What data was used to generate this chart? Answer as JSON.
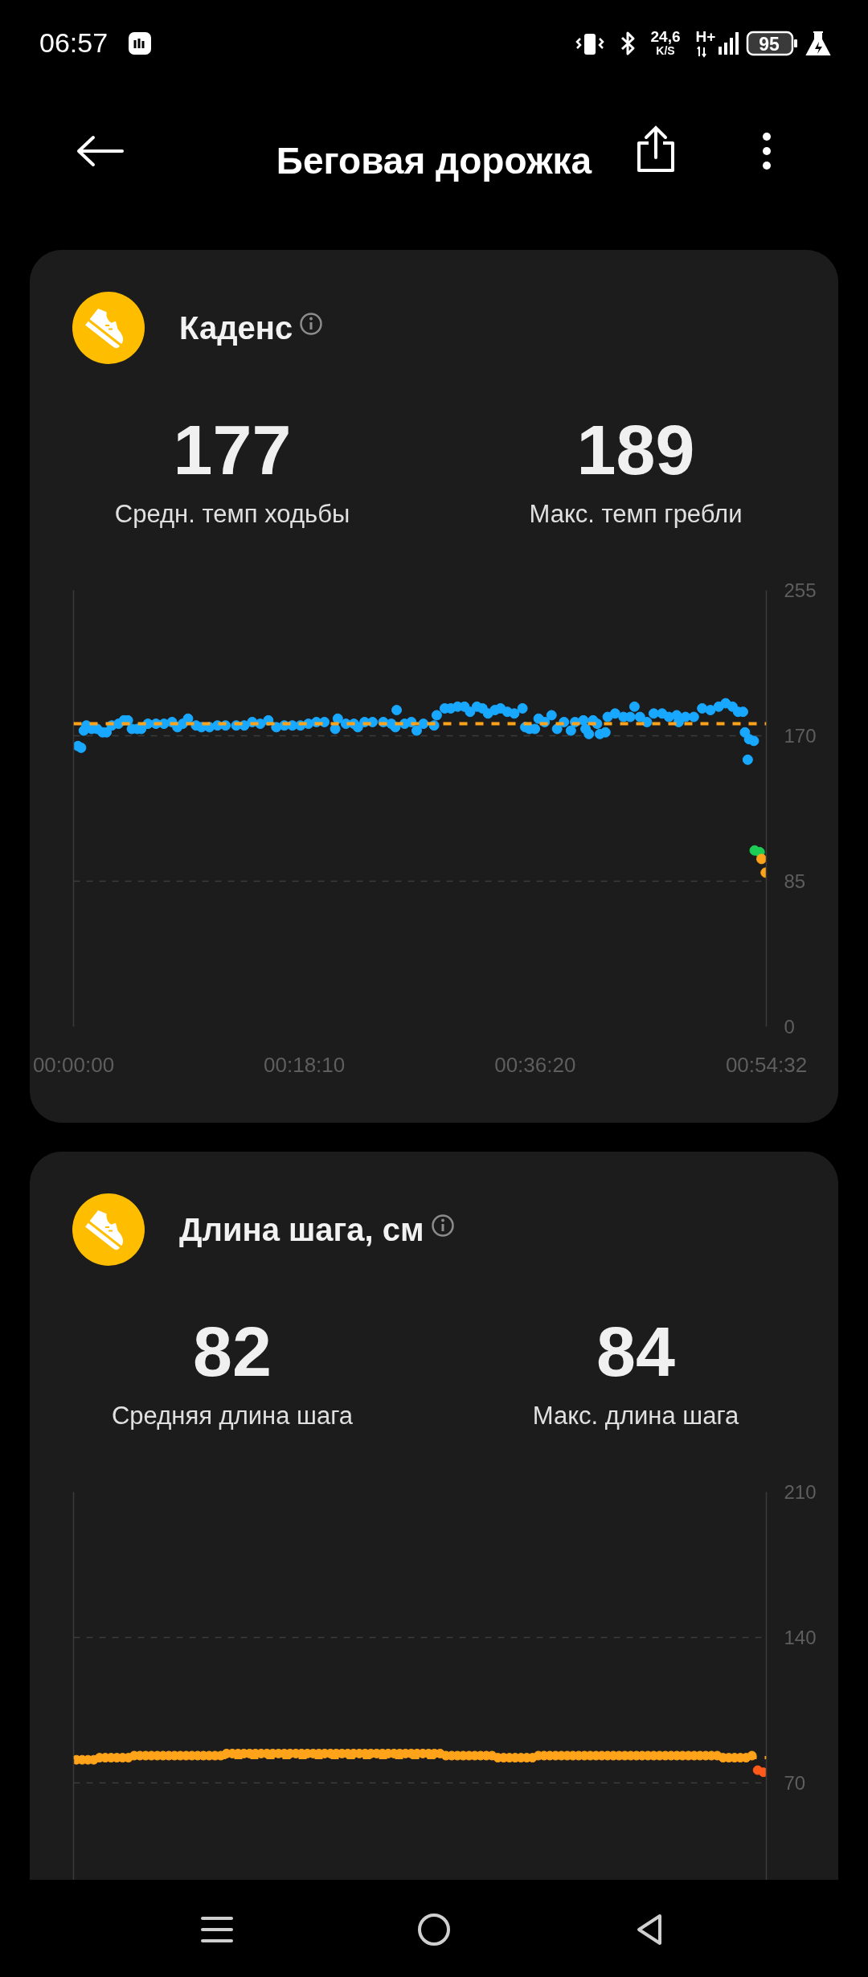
{
  "chart_data": [
    {
      "type": "other",
      "title": "Беговая дорожка",
      "annotations": [
        "06:57",
        "24,6",
        "K/S",
        "H+",
        "95"
      ]
    },
    {
      "type": "scatter",
      "title": "Каденс",
      "annotations": [
        "177",
        "Средн. темп ходьбы",
        "189",
        "Макс. темп гребли"
      ],
      "x": [
        0.0057,
        0.0099,
        0.0134,
        0.0169,
        0.0239,
        0.0309,
        0.038,
        0.0433,
        0.0502,
        0.059,
        0.066,
        0.0713,
        0.0765,
        0.0836,
        0.0888,
        0.0976,
        0.1081,
        0.1186,
        0.1292,
        0.1362,
        0.1433,
        0.1502,
        0.1607,
        0.1678,
        0.1783,
        0.1888,
        0.1994,
        0.2134,
        0.2239,
        0.2344,
        0.2449,
        0.2555,
        0.266,
        0.2765,
        0.287,
        0.2976,
        0.3081,
        0.3186,
        0.3291,
        0.3433,
        0.3467,
        0.3573,
        0.3678,
        0.373,
        0.3818,
        0.3923,
        0.4064,
        0.4169,
        0.4222,
        0.4239,
        0.4344,
        0.4432,
        0.4502,
        0.459,
        0.473,
        0.4765,
        0.487,
        0.4948,
        0.5039,
        0.5129,
        0.5202,
        0.5292,
        0.5365,
        0.5438,
        0.5528,
        0.5601,
        0.5691,
        0.5782,
        0.589,
        0.5926,
        0.5981,
        0.6053,
        0.6101,
        0.6181,
        0.6271,
        0.6344,
        0.6434,
        0.6525,
        0.6579,
        0.6688,
        0.6717,
        0.6761,
        0.6815,
        0.6869,
        0.6905,
        0.6978,
        0.7007,
        0.7105,
        0.7214,
        0.7304,
        0.7359,
        0.7431,
        0.7522,
        0.7612,
        0.7721,
        0.7811,
        0.7913,
        0.7939,
        0.8029,
        0.8138,
        0.8247,
        0.8355,
        0.8464,
        0.8555,
        0.8645,
        0.8718,
        0.8783,
        0.8808,
        0.8845,
        0.8863,
        0.8925
      ],
      "series": [
        {
          "color": "#18a8ff",
          "values": [
            164,
            163,
            173,
            176,
            174,
            174,
            172,
            172,
            176,
            177,
            179,
            179,
            174,
            174,
            174,
            177,
            177,
            177,
            178,
            175,
            177,
            180,
            176,
            175,
            175,
            176,
            176,
            176,
            176,
            178,
            177,
            179,
            175,
            176,
            176,
            176,
            177,
            178,
            178,
            174,
            180,
            177,
            177,
            175,
            178,
            178,
            178,
            177,
            175,
            185,
            177,
            178,
            173,
            177,
            176,
            182,
            186,
            186,
            187,
            187,
            184,
            187,
            186,
            183,
            185,
            186,
            184,
            183,
            186,
            175,
            174,
            174,
            180,
            178,
            182,
            174,
            178,
            173,
            178,
            179,
            174,
            171,
            179,
            177,
            171,
            172,
            181,
            183,
            181,
            181,
            187,
            181,
            178,
            183,
            183,
            181,
            182,
            178,
            181,
            181,
            186,
            185,
            187,
            189,
            187,
            184,
            184,
            172,
            156,
            168,
            167
          ]
        },
        {
          "color": "#1ccc55",
          "x": [
            0.8936,
            0.9001
          ],
          "values": [
            103,
            102
          ]
        },
        {
          "color": "#ffa31a",
          "x": [
            0.9026,
            0.9081
          ],
          "values": [
            98,
            90
          ]
        }
      ],
      "xlim": [
        0,
        0.90889
      ],
      "xticks": [
        {
          "value": 0,
          "label": "00:00:00"
        },
        {
          "value": 0.302778,
          "label": "00:18:10"
        },
        {
          "value": 0.605556,
          "label": "00:36:20"
        },
        {
          "value": 0.908889,
          "label": "00:54:32"
        }
      ],
      "ylim": [
        0,
        255
      ],
      "yticks": [
        0,
        85,
        170,
        255
      ],
      "grid": "y",
      "marker": "circle",
      "ref_lines": [
        {
          "axis": "y",
          "value": 177,
          "color": "#ffa31a",
          "line_style": "dashed"
        }
      ]
    },
    {
      "type": "scatter",
      "title": "Длина шага, см",
      "annotations": [
        "82",
        "Средняя длина шага",
        "84",
        "Макс. длина шага"
      ],
      "categories": [
        null,
        null,
        null,
        null,
        null,
        null,
        null,
        null,
        null,
        null,
        null,
        null,
        null,
        null,
        null,
        null,
        null,
        null,
        null,
        null,
        null,
        null,
        null,
        null,
        null,
        null,
        null,
        null,
        null,
        null,
        null,
        null,
        null,
        null,
        null,
        null,
        null,
        null,
        null,
        null,
        null,
        null,
        null,
        null,
        null,
        null,
        null,
        null,
        null,
        null,
        null,
        null,
        null,
        null,
        null,
        null,
        null,
        null,
        null,
        null,
        null,
        null,
        null,
        null,
        null,
        null,
        null,
        null,
        null,
        null,
        null,
        null,
        null,
        null,
        null,
        null,
        null,
        null,
        null,
        null,
        null,
        null,
        null,
        null,
        null,
        null,
        null,
        null,
        null,
        null,
        null,
        null,
        null,
        null,
        null,
        null,
        null,
        null,
        null,
        null,
        null,
        null,
        null,
        null,
        null,
        null,
        null,
        null,
        null,
        null,
        null,
        null,
        null,
        null,
        null,
        null,
        null,
        null,
        null,
        null
      ],
      "series": [
        {
          "color": "#ffa31a",
          "values": [
            81,
            81,
            81,
            81,
            82,
            82,
            82,
            82,
            82,
            82,
            83,
            83,
            83,
            83,
            83,
            83,
            83,
            83,
            83,
            83,
            83,
            83,
            83,
            83,
            83,
            83,
            84,
            84,
            84,
            84,
            84,
            84,
            84,
            84,
            84,
            84,
            84,
            84,
            84,
            84,
            84,
            84,
            84,
            84,
            84,
            84,
            84,
            84,
            84,
            84,
            84,
            84,
            84,
            84,
            84,
            84,
            84,
            84,
            84,
            84,
            84,
            84,
            84,
            84,
            83,
            83,
            83,
            83,
            83,
            83,
            83,
            83,
            83,
            82,
            82,
            82,
            82,
            82,
            82,
            82,
            83,
            83,
            83,
            83,
            83,
            83,
            83,
            83,
            83,
            83,
            83,
            83,
            83,
            83,
            83,
            83,
            83,
            83,
            83,
            83,
            83,
            83,
            83,
            83,
            83,
            83,
            83,
            83,
            83,
            83,
            83,
            83,
            82,
            82,
            82,
            82,
            82,
            83,
            null,
            null
          ]
        },
        {
          "color": "#ff5a1a",
          "values": [
            null,
            null,
            null,
            null,
            null,
            null,
            null,
            null,
            null,
            null,
            null,
            null,
            null,
            null,
            null,
            null,
            null,
            null,
            null,
            null,
            null,
            null,
            null,
            null,
            null,
            null,
            null,
            null,
            null,
            null,
            null,
            null,
            null,
            null,
            null,
            null,
            null,
            null,
            null,
            null,
            null,
            null,
            null,
            null,
            null,
            null,
            null,
            null,
            null,
            null,
            null,
            null,
            null,
            null,
            null,
            null,
            null,
            null,
            null,
            null,
            null,
            null,
            null,
            null,
            null,
            null,
            null,
            null,
            null,
            null,
            null,
            null,
            null,
            null,
            null,
            null,
            null,
            null,
            null,
            null,
            null,
            null,
            null,
            null,
            null,
            null,
            null,
            null,
            null,
            null,
            null,
            null,
            null,
            null,
            null,
            null,
            null,
            null,
            null,
            null,
            null,
            null,
            null,
            null,
            null,
            null,
            null,
            null,
            null,
            null,
            null,
            null,
            null,
            null,
            null,
            null,
            null,
            null,
            76,
            75
          ]
        }
      ],
      "ylim": [
        23,
        210
      ],
      "yticks": [
        70,
        140,
        210
      ],
      "grid": "y",
      "marker": "circle",
      "tick_labels": "y",
      "ref_lines": [
        {
          "axis": "y",
          "value": 82,
          "color": "#ffa31a",
          "line_style": "dashed"
        }
      ]
    }
  ]
}
